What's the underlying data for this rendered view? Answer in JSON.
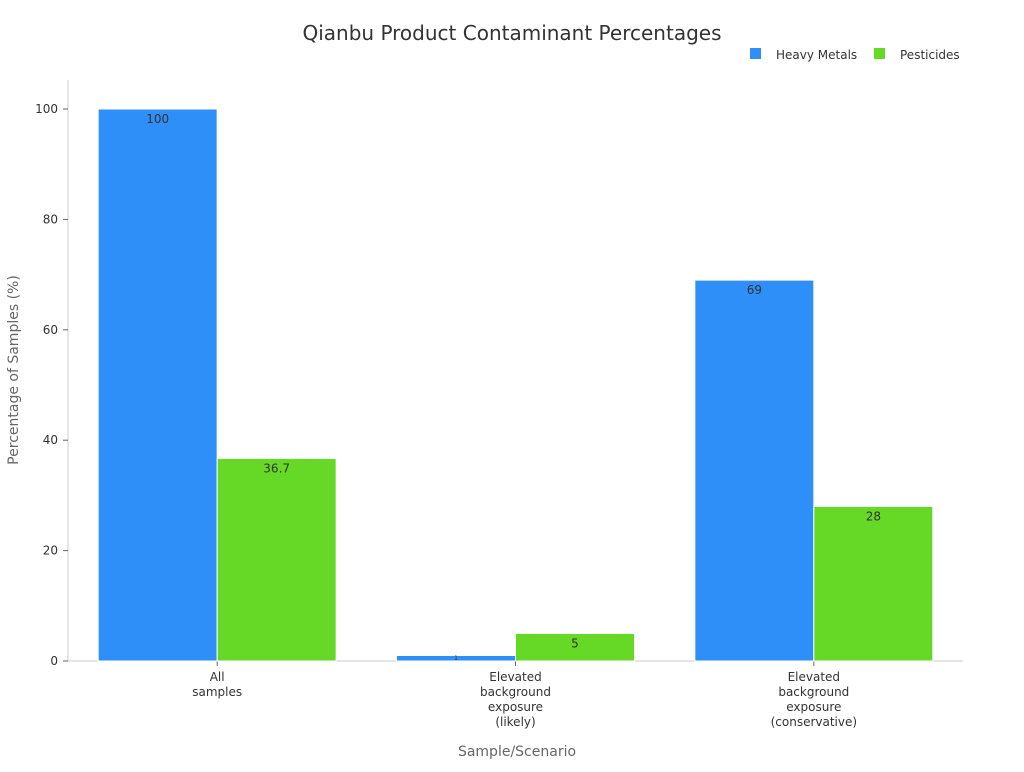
{
  "chart_data": {
    "type": "bar",
    "title": "Qianbu Product Contaminant Percentages",
    "xlabel": "Sample/Scenario",
    "ylabel": "Percentage of Samples (%)",
    "categories": [
      [
        "All",
        "samples"
      ],
      [
        "Elevated",
        "background",
        "exposure",
        "(likely)"
      ],
      [
        "Elevated",
        "background",
        "exposure",
        "(conservative)"
      ]
    ],
    "series": [
      {
        "name": "Heavy Metals",
        "color": "#2f8ff8",
        "values": [
          100,
          1,
          69
        ],
        "labels": [
          "100",
          "1",
          "69"
        ]
      },
      {
        "name": "Pesticides",
        "color": "#66d926",
        "values": [
          36.7,
          5,
          28
        ],
        "labels": [
          "36.7",
          "5",
          "28"
        ]
      }
    ],
    "ylim": [
      0,
      105
    ],
    "yticks": [
      0,
      20,
      40,
      60,
      80,
      100
    ],
    "grid": false,
    "legend": "top-right"
  }
}
